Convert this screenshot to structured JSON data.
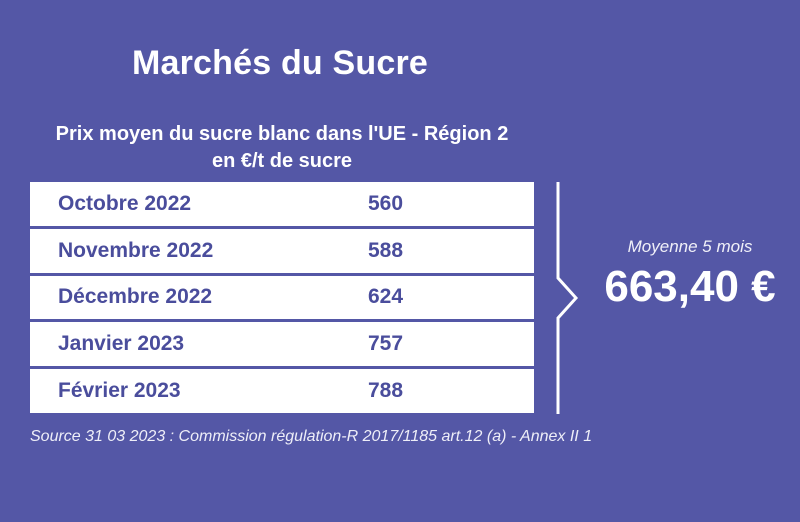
{
  "title": "Marchés du Sucre",
  "subtitle_line1": "Prix moyen du sucre blanc dans l'UE - Région 2",
  "subtitle_line2": "en €/t de sucre",
  "rows": [
    {
      "month": "Octobre 2022",
      "price": "560"
    },
    {
      "month": "Novembre 2022",
      "price": "588"
    },
    {
      "month": "Décembre 2022",
      "price": "624"
    },
    {
      "month": "Janvier 2023",
      "price": "757"
    },
    {
      "month": "Février 2023",
      "price": "788"
    }
  ],
  "average": {
    "label": "Moyenne 5 mois",
    "value": "663,40 €"
  },
  "source": "Source 31 03 2023 : Commission régulation-R 2017/1185  art.12 (a) - Annex II 1",
  "colors": {
    "background": "#5457a6",
    "table_text": "#4a4d9c",
    "table_bg": "#ffffff"
  }
}
